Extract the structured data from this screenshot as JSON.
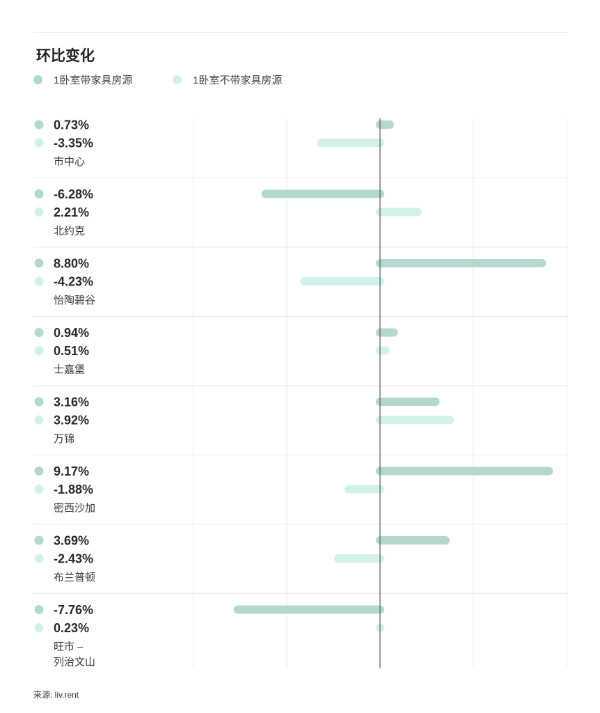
{
  "title": "环比变化",
  "legend": {
    "furnished": "1卧室带家具房源",
    "unfurnished": "1卧室不带家具房源"
  },
  "source": "来源: liv.rent",
  "colors": {
    "furnished": "#b3d8cf",
    "unfurnished": "#d3f0ea",
    "axis": "#666666",
    "grid": "#e9e9e9"
  },
  "chart_data": {
    "type": "bar",
    "orientation": "horizontal",
    "title": "环比变化",
    "xlim": [
      -10,
      10
    ],
    "categories": [
      "市中心",
      "北约克",
      "怡陶碧谷",
      "士嘉堡",
      "万锦",
      "密西沙加",
      "布兰普顿",
      "旺市 –\n列治文山"
    ],
    "series": [
      {
        "name": "1卧室带家具房源",
        "values": [
          0.73,
          -6.28,
          8.8,
          0.94,
          3.16,
          9.17,
          3.69,
          -7.76
        ],
        "labels": [
          "0.73%",
          "-6.28%",
          "8.80%",
          "0.94%",
          "3.16%",
          "9.17%",
          "3.69%",
          "-7.76%"
        ]
      },
      {
        "name": "1卧室不带家具房源",
        "values": [
          -3.35,
          2.21,
          -4.23,
          0.51,
          3.92,
          -1.88,
          -2.43,
          0.23
        ],
        "labels": [
          "-3.35%",
          "2.21%",
          "-4.23%",
          "0.51%",
          "3.92%",
          "-1.88%",
          "-2.43%",
          "0.23%"
        ]
      }
    ]
  }
}
